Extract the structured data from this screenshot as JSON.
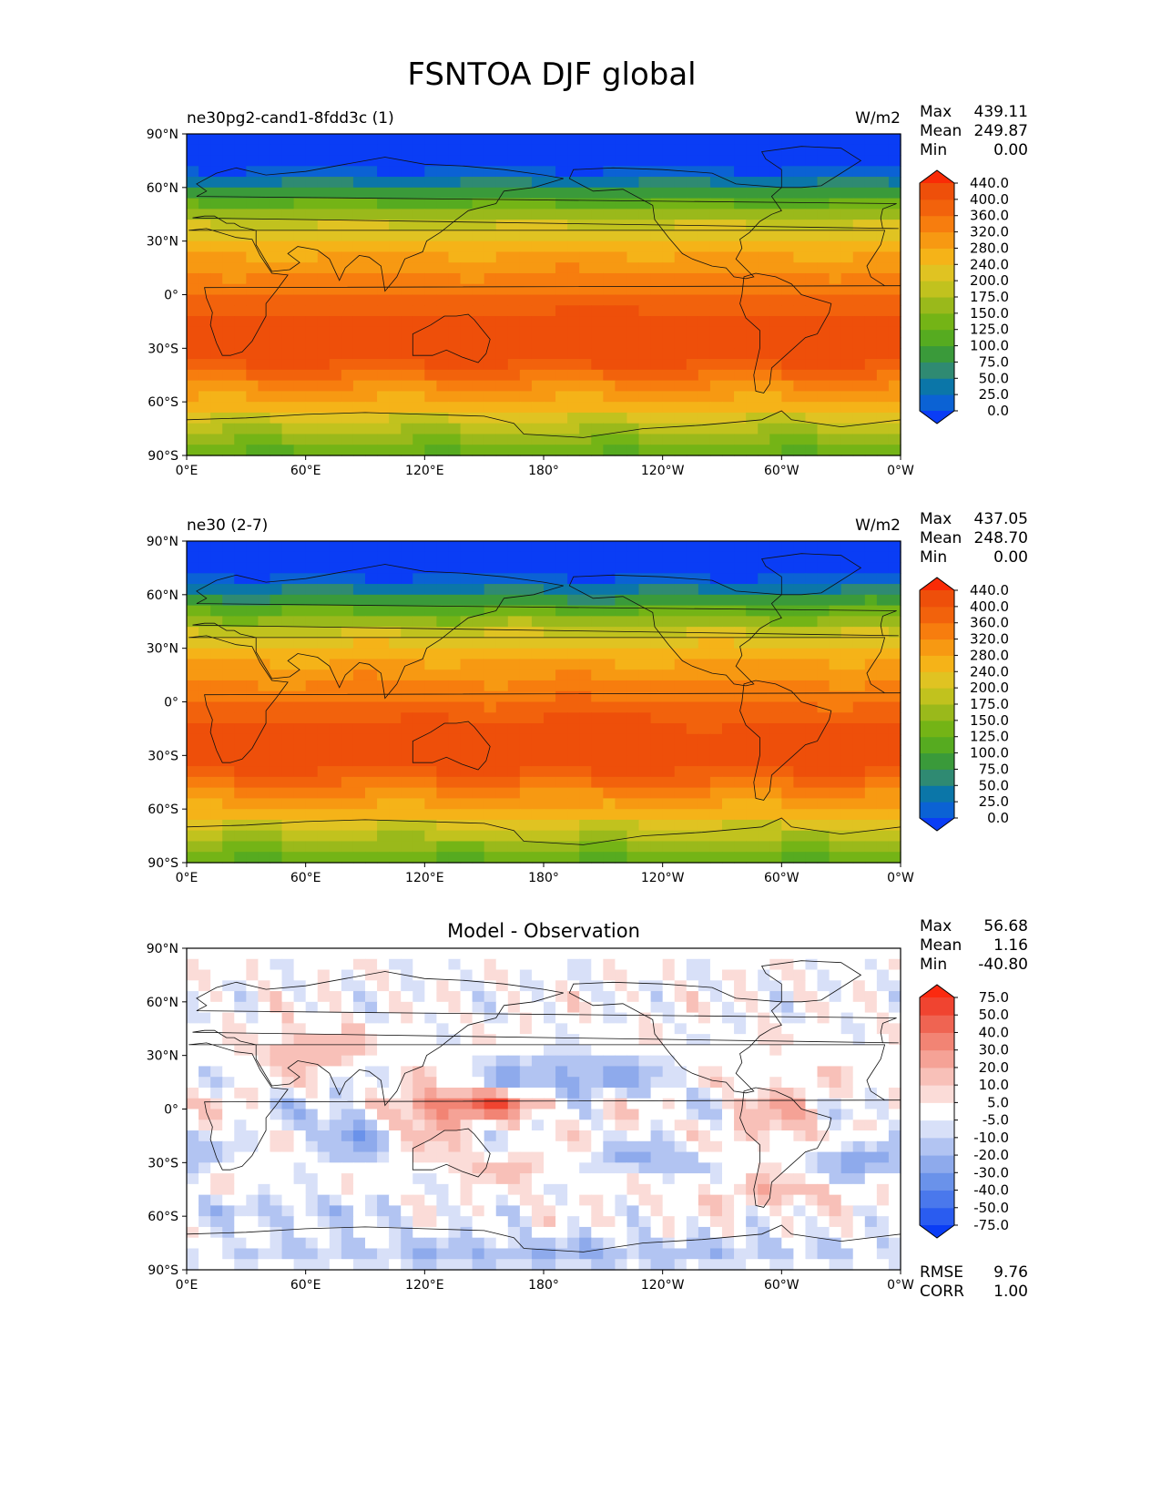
{
  "figure": {
    "title": "FSNTOA DJF global"
  },
  "chart_data": [
    {
      "type": "heatmap",
      "title_left": "ne30pg2-cand1-8fdd3c (1)",
      "title_center": "",
      "units": "W/m2",
      "stats": [
        {
          "label": "Max",
          "value": "439.11"
        },
        {
          "label": "Mean",
          "value": "249.87"
        },
        {
          "label": "Min",
          "value": "0.00"
        }
      ],
      "xticks": [
        "0°E",
        "60°E",
        "120°E",
        "180°",
        "120°W",
        "60°W",
        "0°W"
      ],
      "yticks": [
        "90°N",
        "60°N",
        "30°N",
        "0°",
        "30°S",
        "60°S",
        "90°S"
      ],
      "xlim": [
        0,
        360
      ],
      "ylim": [
        -90,
        90
      ],
      "field": "model",
      "colorbar": {
        "levels": [
          "0.0",
          "25.0",
          "50.0",
          "75.0",
          "100.0",
          "125.0",
          "150.0",
          "175.0",
          "200.0",
          "240.0",
          "280.0",
          "320.0",
          "360.0",
          "400.0",
          "440.0"
        ],
        "colors": [
          "#0a3df5",
          "#0b62d4",
          "#0b76a8",
          "#2f8a72",
          "#3a9a3a",
          "#56ab20",
          "#74b416",
          "#9ab91b",
          "#c1c21e",
          "#e0c322",
          "#f5b318",
          "#f79912",
          "#f77d0e",
          "#f2620c",
          "#ee4f0a",
          "#fa2b06"
        ]
      },
      "footer": []
    },
    {
      "type": "heatmap",
      "title_left": "ne30 (2-7)",
      "title_center": "",
      "units": "W/m2",
      "stats": [
        {
          "label": "Max",
          "value": "437.05"
        },
        {
          "label": "Mean",
          "value": "248.70"
        },
        {
          "label": "Min",
          "value": "0.00"
        }
      ],
      "xticks": [
        "0°E",
        "60°E",
        "120°E",
        "180°",
        "120°W",
        "60°W",
        "0°W"
      ],
      "yticks": [
        "90°N",
        "60°N",
        "30°N",
        "0°",
        "30°S",
        "60°S",
        "90°S"
      ],
      "xlim": [
        0,
        360
      ],
      "ylim": [
        -90,
        90
      ],
      "field": "obs",
      "colorbar": {
        "levels": [
          "0.0",
          "25.0",
          "50.0",
          "75.0",
          "100.0",
          "125.0",
          "150.0",
          "175.0",
          "200.0",
          "240.0",
          "280.0",
          "320.0",
          "360.0",
          "400.0",
          "440.0"
        ],
        "colors": [
          "#0a3df5",
          "#0b62d4",
          "#0b76a8",
          "#2f8a72",
          "#3a9a3a",
          "#56ab20",
          "#74b416",
          "#9ab91b",
          "#c1c21e",
          "#e0c322",
          "#f5b318",
          "#f79912",
          "#f77d0e",
          "#f2620c",
          "#ee4f0a",
          "#fa2b06"
        ]
      },
      "footer": []
    },
    {
      "type": "heatmap",
      "title_left": "",
      "title_center": "Model - Observation",
      "units": "",
      "stats": [
        {
          "label": "Max",
          "value": "56.68"
        },
        {
          "label": "Mean",
          "value": "1.16"
        },
        {
          "label": "Min",
          "value": "-40.80"
        }
      ],
      "xticks": [
        "0°E",
        "60°E",
        "120°E",
        "180°",
        "120°W",
        "60°W",
        "0°W"
      ],
      "yticks": [
        "90°N",
        "60°N",
        "30°N",
        "0°",
        "30°S",
        "60°S",
        "90°S"
      ],
      "xlim": [
        0,
        360
      ],
      "ylim": [
        -90,
        90
      ],
      "field": "diff",
      "colorbar": {
        "levels": [
          "-75.0",
          "-50.0",
          "-40.0",
          "-30.0",
          "-20.0",
          "-10.0",
          "-5.0",
          "5.0",
          "10.0",
          "20.0",
          "30.0",
          "40.0",
          "50.0",
          "75.0"
        ],
        "colors": [
          "#0a3df5",
          "#2a5cf0",
          "#4a78ec",
          "#6a92ea",
          "#8eaaec",
          "#b2c4f2",
          "#d8e0f8",
          "#ffffff",
          "#fbdcd8",
          "#f8c0b8",
          "#f5a296",
          "#f28474",
          "#ef6452",
          "#f04430",
          "#fb2a10"
        ]
      },
      "footer": [
        {
          "label": "RMSE",
          "value": "9.76"
        },
        {
          "label": "CORR",
          "value": "1.00"
        }
      ]
    }
  ]
}
